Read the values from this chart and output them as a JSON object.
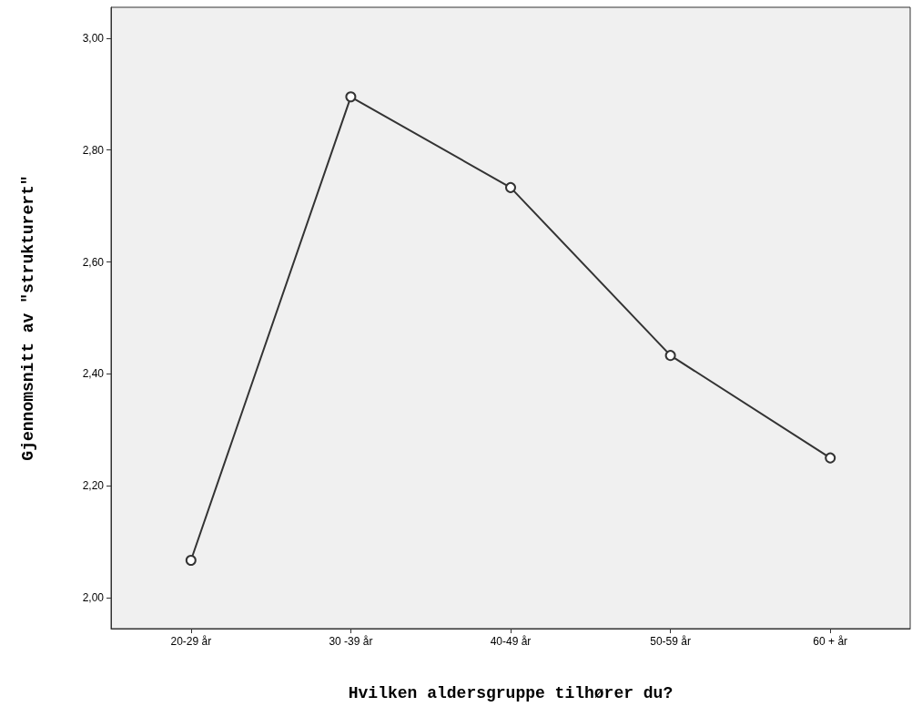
{
  "chart_data": {
    "type": "line",
    "xlabel": "Hvilken aldersgruppe tilhører du?",
    "ylabel": "Gjennomsnitt av \"strukturert\"",
    "categories": [
      "20-29 år",
      "30 -39 år",
      "40-49 år",
      "50-59 år",
      "60 + år"
    ],
    "series": [
      {
        "color": "#333333",
        "values": [
          2.067,
          2.895,
          2.733,
          2.433,
          2.25
        ]
      }
    ],
    "ylim": [
      1.945,
      3.055
    ],
    "yticks": [
      {
        "value": 2,
        "label": "2,00"
      },
      {
        "value": 2.2,
        "label": "2,20"
      },
      {
        "value": 2.4,
        "label": "2,40"
      },
      {
        "value": 2.6,
        "label": "2,60"
      },
      {
        "value": 2.8,
        "label": "2,80"
      },
      {
        "value": 3,
        "label": "3,00"
      }
    ],
    "marker": "circle"
  }
}
